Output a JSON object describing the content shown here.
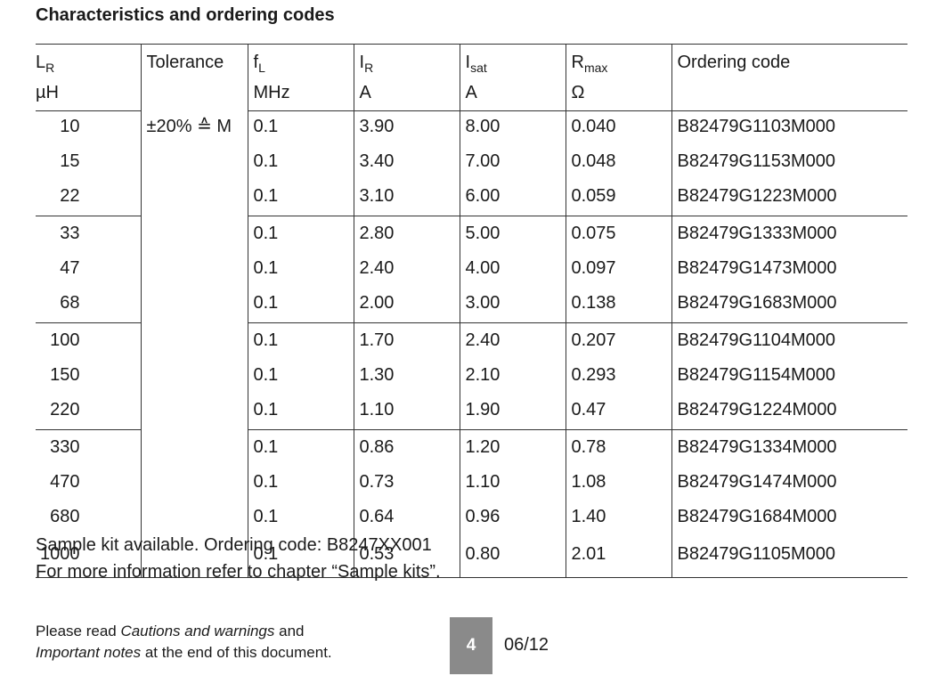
{
  "title": "Characteristics and ordering codes",
  "headers": {
    "lr": {
      "main": "L",
      "sub": "R",
      "unit": "µH"
    },
    "tolerance": {
      "label": "Tolerance"
    },
    "fl": {
      "main": "f",
      "sub": "L",
      "unit": "MHz"
    },
    "ir": {
      "main": "I",
      "sub": "R",
      "unit": "A"
    },
    "isat": {
      "main": "I",
      "sub": "sat",
      "unit": "A"
    },
    "rmax": {
      "main": "R",
      "sub": "max",
      "unit": "Ω"
    },
    "ordering": {
      "label": "Ordering code"
    }
  },
  "tolerance_value": "±20% ≙ M",
  "rows": [
    {
      "lr": "10",
      "fl": "0.1",
      "ir": "3.90",
      "isat": "8.00",
      "rmax": "0.040",
      "code": "B82479G1103M000"
    },
    {
      "lr": "15",
      "fl": "0.1",
      "ir": "3.40",
      "isat": "7.00",
      "rmax": "0.048",
      "code": "B82479G1153M000"
    },
    {
      "lr": "22",
      "fl": "0.1",
      "ir": "3.10",
      "isat": "6.00",
      "rmax": "0.059",
      "code": "B82479G1223M000"
    },
    {
      "lr": "33",
      "fl": "0.1",
      "ir": "2.80",
      "isat": "5.00",
      "rmax": "0.075",
      "code": "B82479G1333M000"
    },
    {
      "lr": "47",
      "fl": "0.1",
      "ir": "2.40",
      "isat": "4.00",
      "rmax": "0.097",
      "code": "B82479G1473M000"
    },
    {
      "lr": "68",
      "fl": "0.1",
      "ir": "2.00",
      "isat": "3.00",
      "rmax": "0.138",
      "code": "B82479G1683M000"
    },
    {
      "lr": "100",
      "fl": "0.1",
      "ir": "1.70",
      "isat": "2.40",
      "rmax": "0.207",
      "code": "B82479G1104M000"
    },
    {
      "lr": "150",
      "fl": "0.1",
      "ir": "1.30",
      "isat": "2.10",
      "rmax": "0.293",
      "code": "B82479G1154M000"
    },
    {
      "lr": "220",
      "fl": "0.1",
      "ir": "1.10",
      "isat": "1.90",
      "rmax": "0.47",
      "code": "B82479G1224M000"
    },
    {
      "lr": "330",
      "fl": "0.1",
      "ir": "0.86",
      "isat": "1.20",
      "rmax": "0.78",
      "code": "B82479G1334M000"
    },
    {
      "lr": "470",
      "fl": "0.1",
      "ir": "0.73",
      "isat": "1.10",
      "rmax": "1.08",
      "code": "B82479G1474M000"
    },
    {
      "lr": "680",
      "fl": "0.1",
      "ir": "0.64",
      "isat": "0.96",
      "rmax": "1.40",
      "code": "B82479G1684M000"
    },
    {
      "lr": "1000",
      "fl": "0.1",
      "ir": "0.53",
      "isat": "0.80",
      "rmax": "2.01",
      "code": "B82479G1105M000"
    }
  ],
  "notes": [
    "Sample kit available. Ordering code: B8247XX001",
    "For more information refer to chapter “Sample kits”."
  ],
  "footer": {
    "line1_prefix": "Please read ",
    "line1_italic": "Cautions and warnings",
    "line1_suffix": " and",
    "line2_italic": "Important notes",
    "line2_suffix": " at the end of this document.",
    "page_number": "4",
    "date": "06/12"
  }
}
